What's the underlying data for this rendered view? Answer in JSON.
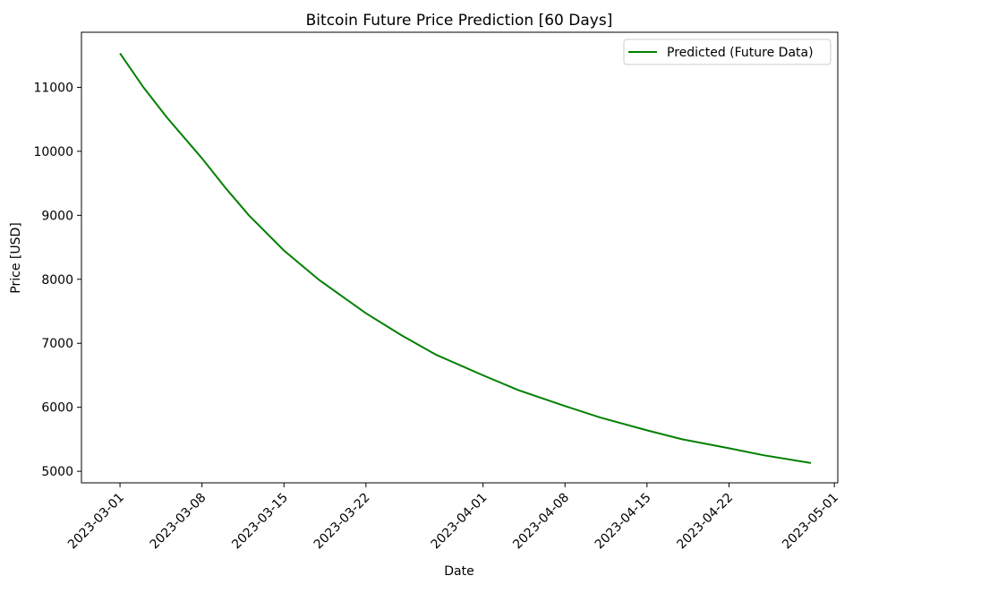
{
  "chart_data": {
    "type": "line",
    "title": "Bitcoin Future Price Prediction [60 Days]",
    "xlabel": "Date",
    "ylabel": "Price [USD]",
    "xlim": [
      "2023-02-25T17:00",
      "2023-05-01T07:00"
    ],
    "ylim": [
      4820,
      11860
    ],
    "x_ticks": [
      "2023-03-01",
      "2023-03-08",
      "2023-03-15",
      "2023-03-22",
      "2023-04-01",
      "2023-04-08",
      "2023-04-15",
      "2023-04-22",
      "2023-05-01"
    ],
    "y_ticks": [
      5000,
      6000,
      7000,
      8000,
      9000,
      10000,
      11000
    ],
    "grid": false,
    "legend_position": "upper right",
    "series": [
      {
        "name": "Predicted (Future Data)",
        "color": "#008000",
        "points": [
          {
            "x": "2023-03-01",
            "y": 11530
          },
          {
            "x": "2023-03-03",
            "y": 11000
          },
          {
            "x": "2023-03-05",
            "y": 10530
          },
          {
            "x": "2023-03-08",
            "y": 9890
          },
          {
            "x": "2023-03-10",
            "y": 9430
          },
          {
            "x": "2023-03-12",
            "y": 9000
          },
          {
            "x": "2023-03-15",
            "y": 8450
          },
          {
            "x": "2023-03-18",
            "y": 7990
          },
          {
            "x": "2023-03-22",
            "y": 7470
          },
          {
            "x": "2023-03-25",
            "y": 7130
          },
          {
            "x": "2023-03-28",
            "y": 6820
          },
          {
            "x": "2023-04-01",
            "y": 6500
          },
          {
            "x": "2023-04-04",
            "y": 6270
          },
          {
            "x": "2023-04-08",
            "y": 6020
          },
          {
            "x": "2023-04-11",
            "y": 5840
          },
          {
            "x": "2023-04-15",
            "y": 5640
          },
          {
            "x": "2023-04-18",
            "y": 5500
          },
          {
            "x": "2023-04-22",
            "y": 5360
          },
          {
            "x": "2023-04-25",
            "y": 5250
          },
          {
            "x": "2023-04-29",
            "y": 5130
          }
        ]
      }
    ]
  }
}
